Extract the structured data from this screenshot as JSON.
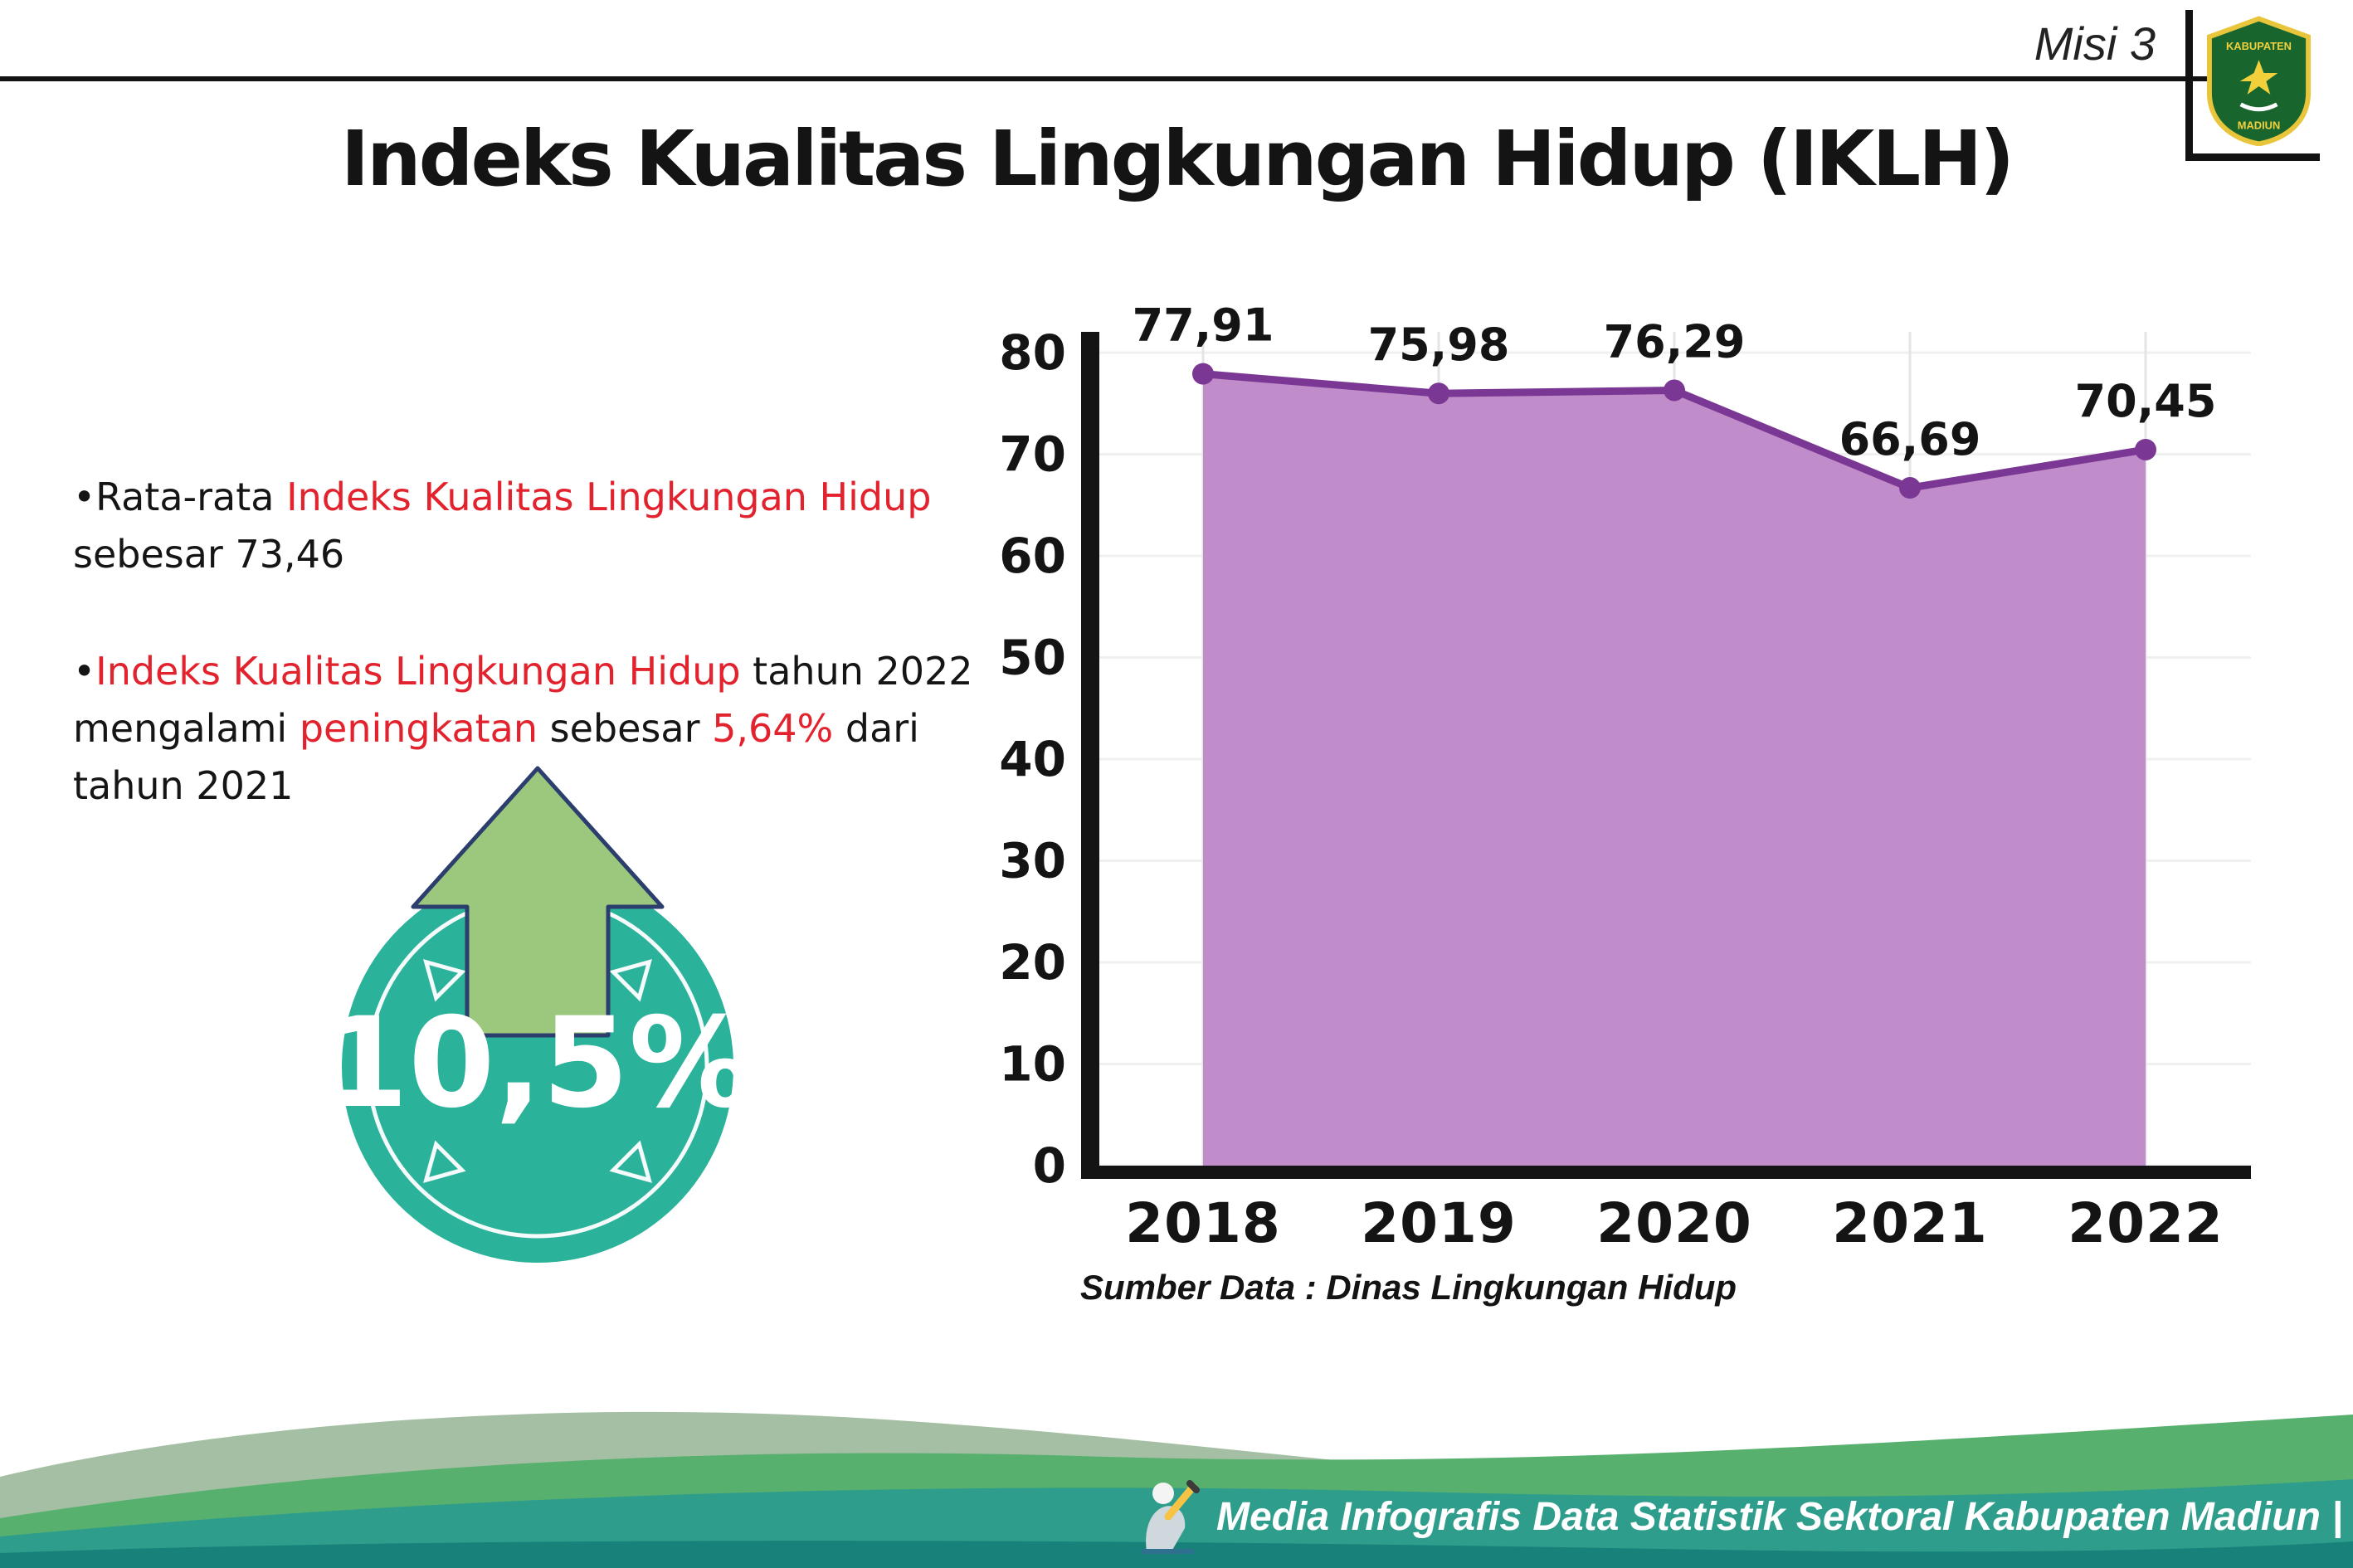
{
  "header": {
    "misi": "Misi 3",
    "title": "Indeks Kualitas Lingkungan Hidup (IKLH)",
    "logo": {
      "line1": "KABUPATEN",
      "line2": "MADIUN"
    }
  },
  "bullets": [
    {
      "segments": [
        {
          "t": "Rata-rata ",
          "red": false
        },
        {
          "t": "Indeks Kualitas Lingkungan Hidup",
          "red": true
        },
        {
          "t": " sebesar 73,46",
          "red": false
        }
      ]
    },
    {
      "segments": [
        {
          "t": "Indeks Kualitas Lingkungan Hidup",
          "red": true
        },
        {
          "t": " tahun 2022 mengalami ",
          "red": false
        },
        {
          "t": "peningkatan",
          "red": true
        },
        {
          "t": " sebesar ",
          "red": false
        },
        {
          "t": "5,64%",
          "red": true
        },
        {
          "t": " dari tahun 2021",
          "red": false
        }
      ]
    }
  ],
  "badge": {
    "value": "10,5%"
  },
  "chart_data": {
    "type": "area",
    "title": "",
    "xlabel": "",
    "ylabel": "",
    "categories": [
      "2018",
      "2019",
      "2020",
      "2021",
      "2022"
    ],
    "values": [
      77.91,
      75.98,
      76.29,
      66.69,
      70.45
    ],
    "labels": [
      "77,91",
      "75,98",
      "76,29",
      "66,69",
      "70,45"
    ],
    "ylim": [
      0,
      80
    ],
    "yticks": [
      0,
      10,
      20,
      30,
      40,
      50,
      60,
      70,
      80
    ],
    "grid": "light vertical and horizontal",
    "legend": "none",
    "line_color": "#7b3794",
    "fill_color": "#c08cc9",
    "source_caption": "Sumber Data : Dinas Lingkungan Hidup"
  },
  "caption": "Sumber Data : Dinas Lingkungan Hidup",
  "footer": {
    "text": "Media Infografis Data Statistik Sektoral Kabupaten Madiun |"
  },
  "colors": {
    "red": "#e2232e",
    "teal": "#2bb29b",
    "arrow_green": "#9cc87e",
    "arrow_outline": "#2c3e6e",
    "line_purple": "#7b3794",
    "fill_purple": "#c08cc9",
    "wave_sage": "#a4bfa4",
    "wave_green": "#57b06e",
    "wave_teal": "#2f9d8c",
    "wave_dark": "#17817a",
    "black": "#121212"
  }
}
